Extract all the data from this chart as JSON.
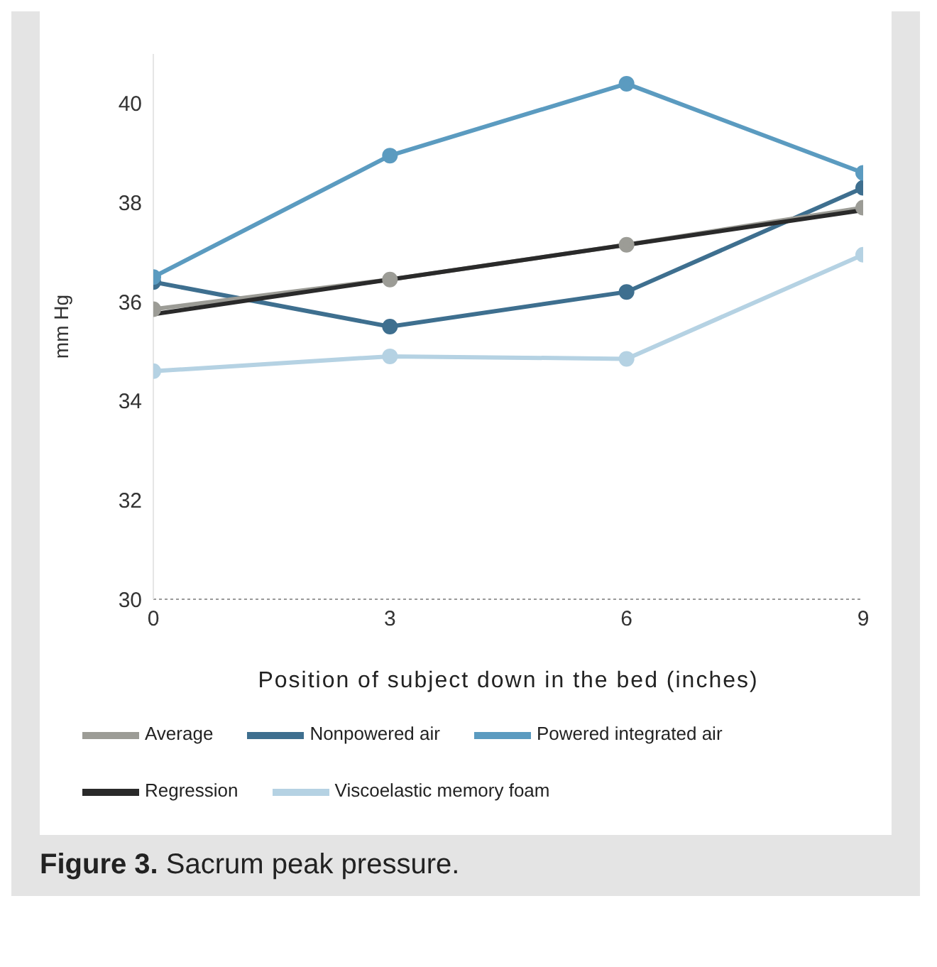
{
  "chart_data": {
    "type": "line",
    "xlabel": "Position of subject down in the bed (inches)",
    "ylabel": "mm Hg",
    "x": [
      0,
      3,
      6,
      9
    ],
    "xlim": [
      0,
      9
    ],
    "xticks": [
      0,
      3,
      6,
      9
    ],
    "ylim": [
      30,
      41
    ],
    "yticks": [
      30,
      32,
      34,
      36,
      38,
      40
    ],
    "legend": "bottom",
    "marker": "circle",
    "line_style": "solid",
    "series": [
      {
        "name": "Nonpowered air",
        "color": "#3e6f8f",
        "values": [
          36.4,
          35.5,
          36.2,
          38.3
        ]
      },
      {
        "name": "Viscoelastic memory foam",
        "color": "#b5d2e3",
        "values": [
          34.6,
          34.9,
          34.85,
          36.95
        ]
      },
      {
        "name": "Powered integrated air",
        "color": "#5b9bc0",
        "values": [
          36.5,
          38.95,
          40.4,
          38.6
        ]
      },
      {
        "name": "Average",
        "color": "#9c9c96",
        "values": [
          35.85,
          36.45,
          37.15,
          37.9
        ]
      },
      {
        "name": "Regression",
        "color": "#2a2a2a",
        "type": "line",
        "marker": "none",
        "x": [
          0,
          9
        ],
        "values": [
          35.75,
          37.85
        ]
      }
    ],
    "annotations": [
      "Figure 3. Sacrum peak pressure."
    ]
  }
}
